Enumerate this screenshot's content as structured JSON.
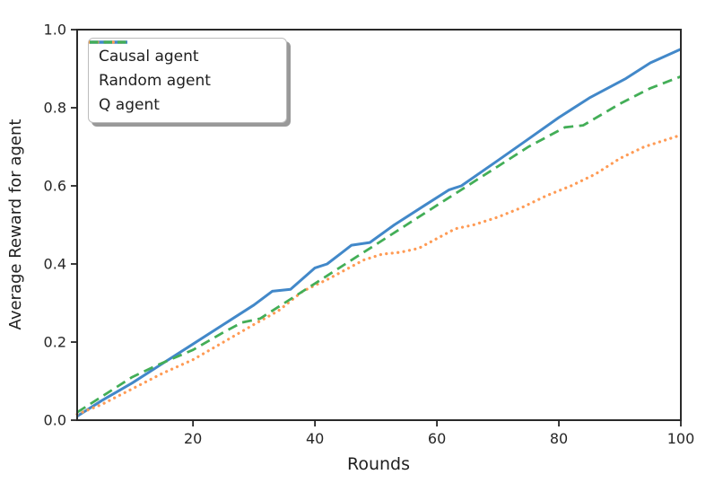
{
  "chart_data": {
    "type": "line",
    "title": "",
    "xlabel": "Rounds",
    "ylabel": "Average Reward for agent",
    "xlim": [
      1,
      100
    ],
    "ylim": [
      0.0,
      1.0
    ],
    "grid": false,
    "legend_position": "upper left",
    "xticks": [
      {
        "v": 20,
        "label": "20"
      },
      {
        "v": 40,
        "label": "40"
      },
      {
        "v": 60,
        "label": "60"
      },
      {
        "v": 80,
        "label": "80"
      },
      {
        "v": 100,
        "label": "100"
      }
    ],
    "yticks": [
      {
        "v": 0.0,
        "label": "0.0"
      },
      {
        "v": 0.2,
        "label": "0.2"
      },
      {
        "v": 0.4,
        "label": "0.4"
      },
      {
        "v": 0.6,
        "label": "0.6"
      },
      {
        "v": 0.8,
        "label": "0.8"
      },
      {
        "v": 1.0,
        "label": "1.0"
      }
    ],
    "series": [
      {
        "name": "Causal agent",
        "color": "#4288c9",
        "style": "solid",
        "width": 3,
        "points": [
          [
            1,
            0.01
          ],
          [
            5,
            0.05
          ],
          [
            10,
            0.095
          ],
          [
            15,
            0.145
          ],
          [
            20,
            0.195
          ],
          [
            25,
            0.245
          ],
          [
            30,
            0.295
          ],
          [
            33,
            0.33
          ],
          [
            36,
            0.335
          ],
          [
            40,
            0.39
          ],
          [
            42,
            0.4
          ],
          [
            46,
            0.448
          ],
          [
            49,
            0.455
          ],
          [
            53,
            0.5
          ],
          [
            58,
            0.55
          ],
          [
            62,
            0.59
          ],
          [
            64,
            0.6
          ],
          [
            70,
            0.665
          ],
          [
            75,
            0.72
          ],
          [
            80,
            0.775
          ],
          [
            85,
            0.825
          ],
          [
            91,
            0.875
          ],
          [
            95,
            0.915
          ],
          [
            100,
            0.95
          ]
        ]
      },
      {
        "name": "Random agent",
        "color": "#ff9b55",
        "style": "dotted",
        "width": 3.2,
        "points": [
          [
            1,
            0.015
          ],
          [
            5,
            0.04
          ],
          [
            10,
            0.08
          ],
          [
            15,
            0.12
          ],
          [
            20,
            0.155
          ],
          [
            25,
            0.2
          ],
          [
            30,
            0.245
          ],
          [
            34,
            0.28
          ],
          [
            38,
            0.33
          ],
          [
            42,
            0.36
          ],
          [
            45,
            0.385
          ],
          [
            48,
            0.41
          ],
          [
            51,
            0.425
          ],
          [
            54,
            0.43
          ],
          [
            57,
            0.44
          ],
          [
            60,
            0.465
          ],
          [
            63,
            0.49
          ],
          [
            66,
            0.5
          ],
          [
            70,
            0.52
          ],
          [
            74,
            0.545
          ],
          [
            78,
            0.575
          ],
          [
            82,
            0.6
          ],
          [
            86,
            0.63
          ],
          [
            90,
            0.67
          ],
          [
            94,
            0.7
          ],
          [
            97,
            0.715
          ],
          [
            100,
            0.73
          ]
        ]
      },
      {
        "name": "Q agent",
        "color": "#43ae57",
        "style": "dashed",
        "width": 2.8,
        "points": [
          [
            1,
            0.02
          ],
          [
            5,
            0.06
          ],
          [
            10,
            0.11
          ],
          [
            14,
            0.14
          ],
          [
            20,
            0.18
          ],
          [
            25,
            0.225
          ],
          [
            28,
            0.25
          ],
          [
            31,
            0.26
          ],
          [
            35,
            0.3
          ],
          [
            40,
            0.35
          ],
          [
            45,
            0.4
          ],
          [
            50,
            0.45
          ],
          [
            55,
            0.5
          ],
          [
            60,
            0.55
          ],
          [
            65,
            0.6
          ],
          [
            70,
            0.65
          ],
          [
            75,
            0.7
          ],
          [
            81,
            0.75
          ],
          [
            84,
            0.755
          ],
          [
            90,
            0.81
          ],
          [
            95,
            0.85
          ],
          [
            100,
            0.88
          ]
        ]
      }
    ],
    "spine_color": "#2a2a2a",
    "tick_color": "#262626"
  }
}
